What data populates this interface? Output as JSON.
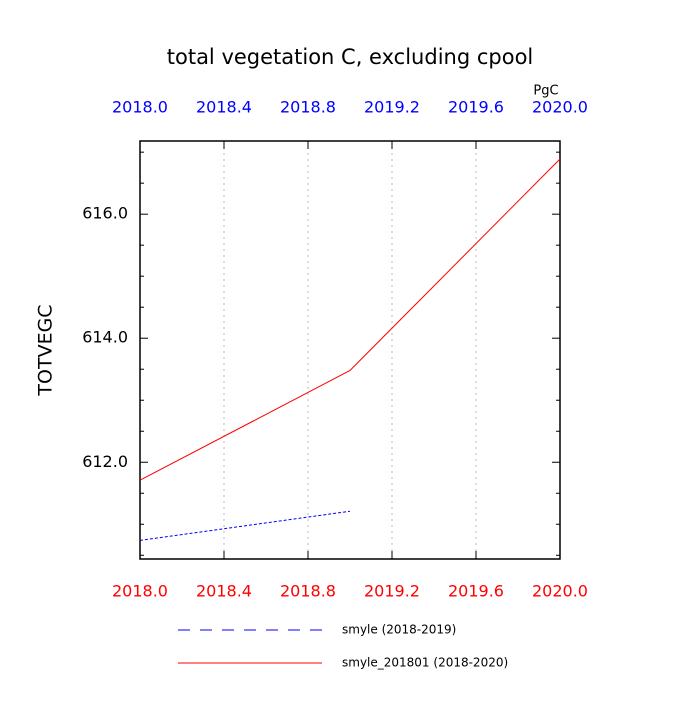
{
  "chart_data": {
    "type": "line",
    "title": "total vegetation C, excluding cpool",
    "units": "PgC",
    "y_label": "TOTVEGC",
    "xlim": [
      2018,
      2020
    ],
    "xticks": [
      {
        "value": 2018,
        "label": "2018.0"
      },
      {
        "value": 2018.4,
        "label": "2018.4"
      },
      {
        "value": 2018.8,
        "label": "2018.8"
      },
      {
        "value": 2019.2,
        "label": "2019.2"
      },
      {
        "value": 2019.6,
        "label": "2019.6"
      },
      {
        "value": 2020,
        "label": "2020.0"
      }
    ],
    "xtick_color": "#ff0000",
    "x2lim": [
      2018,
      2020
    ],
    "x2ticks": [
      {
        "value": 2018,
        "label": "2018.0"
      },
      {
        "value": 2018.4,
        "label": "2018.4"
      },
      {
        "value": 2018.8,
        "label": "2018.8"
      },
      {
        "value": 2019.2,
        "label": "2019.2"
      },
      {
        "value": 2019.6,
        "label": "2019.6"
      },
      {
        "value": 2020,
        "label": "2020.0"
      }
    ],
    "x2tick_color": "#0000ff",
    "ylim": [
      610.44,
      617.18
    ],
    "yticks": [
      {
        "value": 612,
        "label": "612.0"
      },
      {
        "value": 614,
        "label": "614.0"
      },
      {
        "value": 616,
        "label": "616.0"
      }
    ],
    "yminorticks": [
      610.5,
      611,
      611.5,
      612.5,
      613,
      613.5,
      614.5,
      615,
      615.5,
      616.5,
      617
    ],
    "grid": true,
    "series": [
      {
        "name": "smyle (2018-2019)",
        "color": "#0000ff",
        "dash": true,
        "x": [
          2018,
          2019
        ],
        "values": [
          610.74,
          611.21
        ]
      },
      {
        "name": "smyle_201801 (2018-2020)",
        "color": "#ff0000",
        "dash": false,
        "x": [
          2018,
          2019,
          2020
        ],
        "values": [
          611.71,
          613.48,
          616.89
        ]
      }
    ]
  }
}
